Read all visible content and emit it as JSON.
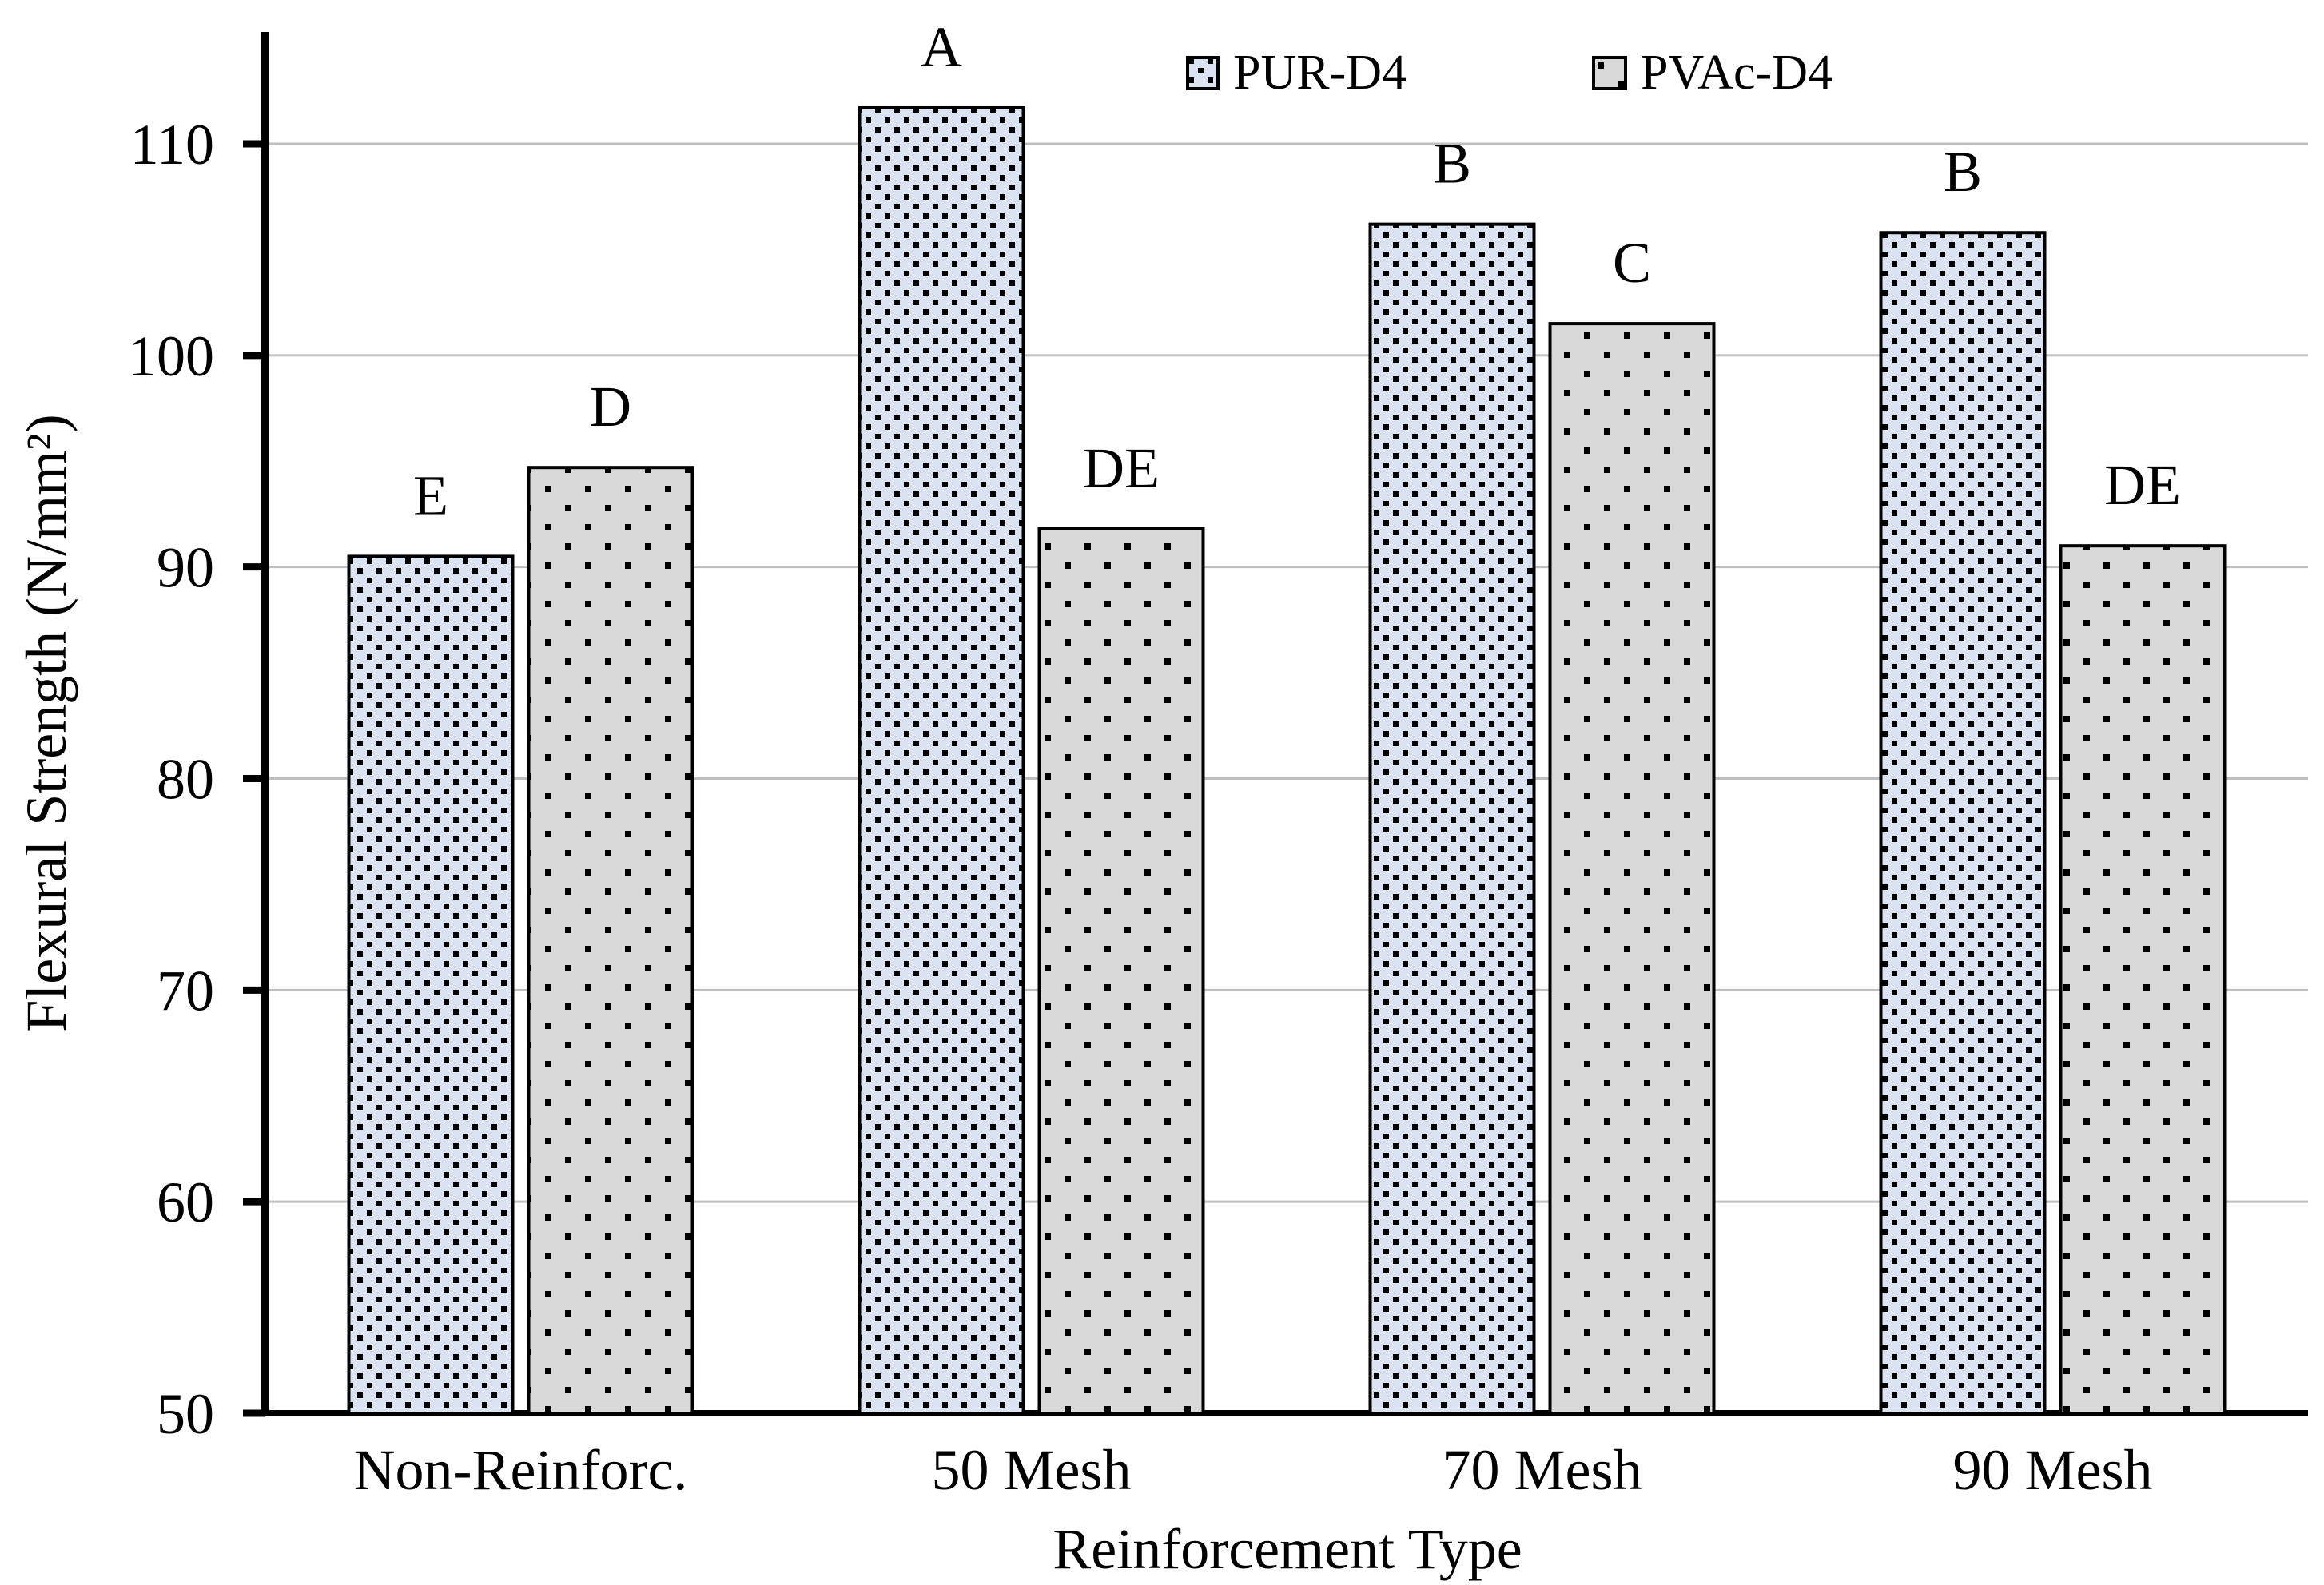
{
  "figure": {
    "background": "#ffffff",
    "text_color": "#000000"
  },
  "legend": {
    "position": "top-center",
    "items": [
      {
        "label": "PUR-D4",
        "swatch": "blue-dotted-swatch"
      },
      {
        "label": "PVAc-D4",
        "swatch": "gray-dotted-swatch"
      }
    ]
  },
  "chart_data": {
    "type": "bar",
    "title": "",
    "xlabel": "Reinforcement Type",
    "ylabel": "Flexural Strength (N/mm²)",
    "categories": [
      "Non-Reinforc.",
      "50 Mesh",
      "70 Mesh",
      "90 Mesh"
    ],
    "series": [
      {
        "name": "PUR-D4",
        "fill": "#dbe3f2",
        "pattern": "dense-black-dots",
        "values": [
          90.5,
          111.7,
          106.2,
          105.8
        ],
        "bar_labels": [
          "E",
          "A",
          "B",
          "B"
        ]
      },
      {
        "name": "PVAc-D4",
        "fill": "#d9d9d9",
        "pattern": "sparse-black-dots",
        "values": [
          94.7,
          91.8,
          101.5,
          91.0
        ],
        "bar_labels": [
          "D",
          "DE",
          "C",
          "DE"
        ]
      }
    ],
    "ylim": [
      50,
      115
    ],
    "yticks": [
      50,
      60,
      70,
      80,
      90,
      100,
      110
    ],
    "grid": "horizontal",
    "gridline_color": "#bfbfbf",
    "axis_color": "#000000",
    "bar_border_color": "#000000",
    "dot_color": "#000000",
    "legend_position": "top-center"
  }
}
